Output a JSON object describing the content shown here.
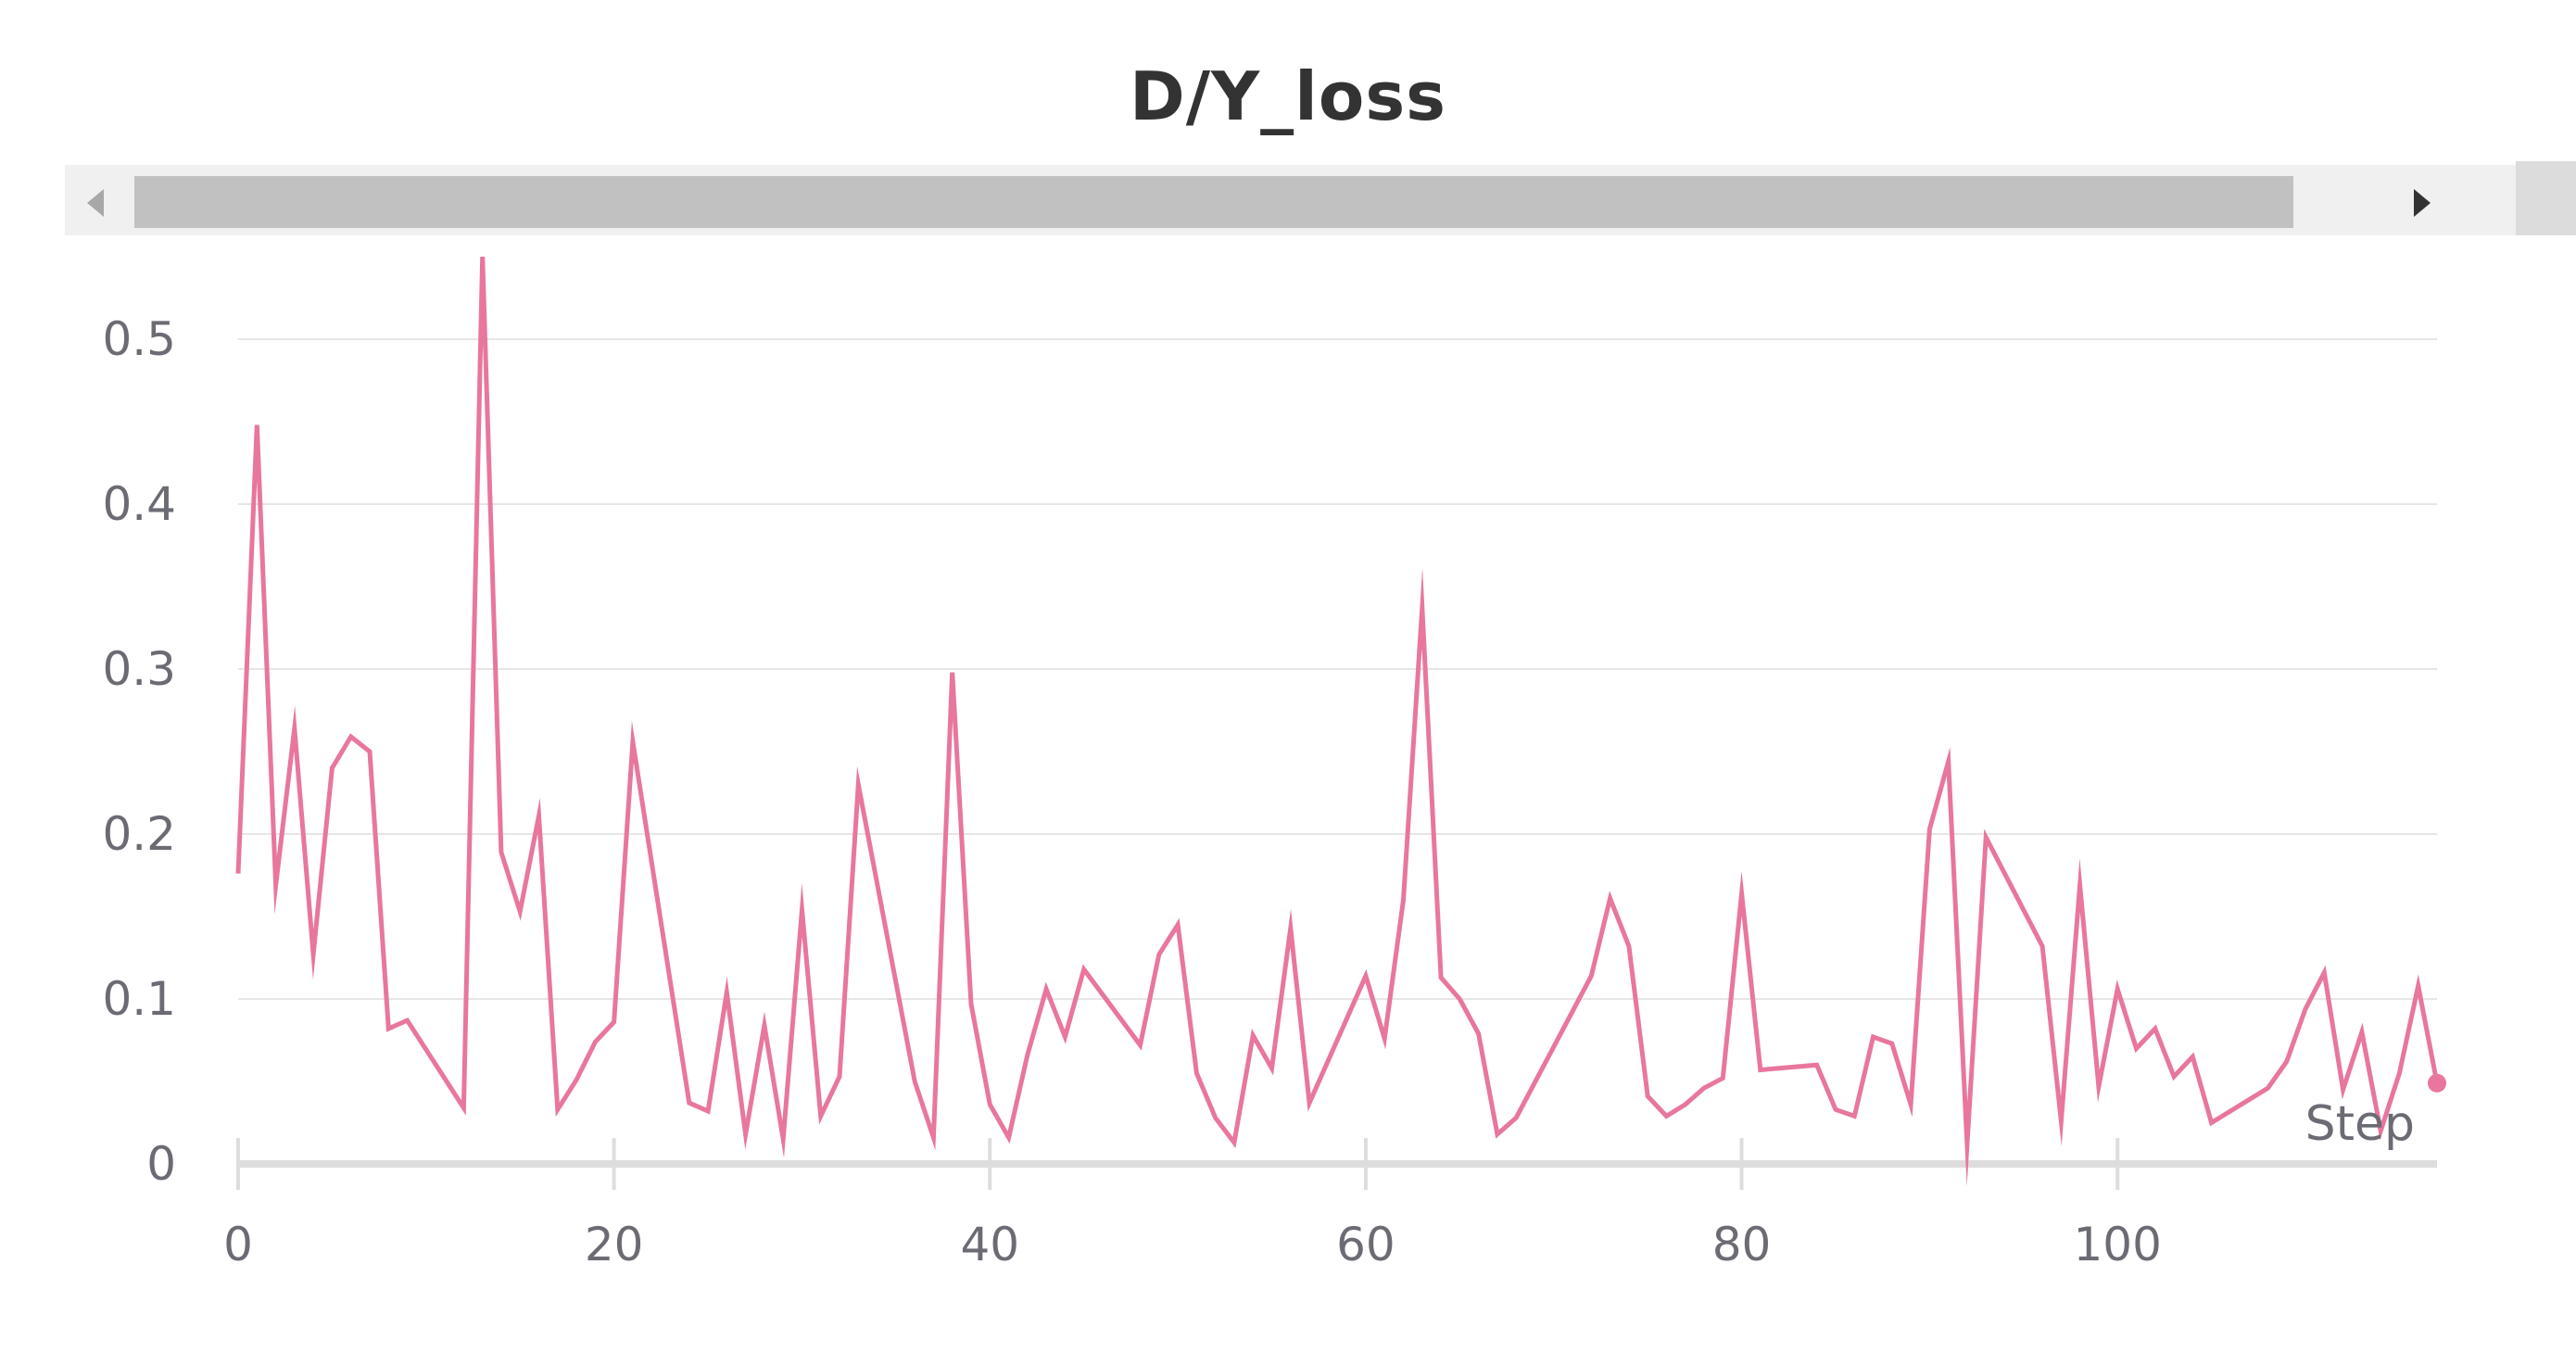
{
  "chart_data": {
    "type": "line",
    "title": "D/Y_loss",
    "xlabel": "Step",
    "ylabel": "",
    "xlim": [
      0,
      117
    ],
    "ylim": [
      0,
      0.55
    ],
    "xticks": [
      0,
      20,
      40,
      60,
      80,
      100
    ],
    "yticks": [
      0,
      0.1,
      0.2,
      0.3,
      0.4,
      0.5
    ],
    "xtick_labels": [
      "0",
      "20",
      "40",
      "60",
      "80",
      "100"
    ],
    "ytick_labels": [
      "0",
      "0.1",
      "0.2",
      "0.3",
      "0.4",
      "0.5"
    ],
    "grid": true,
    "series": [
      {
        "color": "#e8769e",
        "x": [
          0,
          1,
          2,
          3,
          4,
          5,
          6,
          7,
          8,
          9,
          12,
          13,
          14,
          15,
          16,
          17,
          18,
          19,
          20,
          21,
          24,
          25,
          26,
          27,
          28,
          29,
          30,
          31,
          32,
          33,
          36,
          37,
          38,
          39,
          40,
          41,
          42,
          43,
          44,
          45,
          48,
          49,
          50,
          51,
          52,
          53,
          54,
          55,
          56,
          57,
          60,
          61,
          62,
          63,
          64,
          65,
          66,
          67,
          68,
          72,
          73,
          74,
          75,
          76,
          77,
          78,
          79,
          80,
          81,
          84,
          85,
          86,
          87,
          88,
          89,
          90,
          91,
          92,
          93,
          96,
          97,
          98,
          99,
          100,
          101,
          102,
          103,
          104,
          105,
          108,
          109,
          110,
          111,
          112,
          113,
          114,
          115,
          116,
          117
        ],
        "y": [
          0.176,
          0.448,
          0.169,
          0.264,
          0.127,
          0.24,
          0.259,
          0.25,
          0.082,
          0.087,
          0.034,
          0.55,
          0.189,
          0.153,
          0.211,
          0.033,
          0.051,
          0.074,
          0.086,
          0.256,
          0.037,
          0.032,
          0.104,
          0.018,
          0.084,
          0.015,
          0.154,
          0.029,
          0.053,
          0.23,
          0.05,
          0.016,
          0.298,
          0.097,
          0.036,
          0.016,
          0.066,
          0.106,
          0.077,
          0.118,
          0.072,
          0.127,
          0.145,
          0.055,
          0.028,
          0.013,
          0.078,
          0.058,
          0.143,
          0.037,
          0.114,
          0.076,
          0.16,
          0.337,
          0.113,
          0.1,
          0.079,
          0.018,
          0.028,
          0.114,
          0.161,
          0.132,
          0.041,
          0.029,
          0.036,
          0.046,
          0.052,
          0.164,
          0.057,
          0.06,
          0.033,
          0.029,
          0.077,
          0.073,
          0.036,
          0.203,
          0.244,
          0.012,
          0.198,
          0.132,
          0.026,
          0.169,
          0.047,
          0.106,
          0.07,
          0.082,
          0.053,
          0.065,
          0.025,
          0.046,
          0.062,
          0.094,
          0.116,
          0.045,
          0.08,
          0.02,
          0.055,
          0.108,
          0.049
        ]
      }
    ]
  }
}
